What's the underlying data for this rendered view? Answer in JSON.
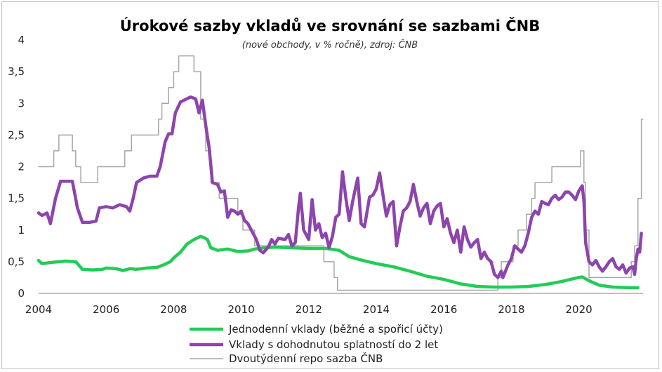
{
  "chart_data": {
    "type": "line",
    "title": "Úrokové sazby vkladů ve srovnání se sazbami ČNB",
    "subtitle": "(nové obchody, v % ročně), zdroj: ČNB",
    "xlim": [
      2004,
      2021.9
    ],
    "ylim": [
      0,
      4
    ],
    "x_ticks": [
      2004,
      2006,
      2008,
      2010,
      2012,
      2014,
      2016,
      2018,
      2020
    ],
    "y_ticks": [
      0,
      0.5,
      1,
      1.5,
      2,
      2.5,
      3,
      3.5,
      4
    ],
    "y_tick_labels": [
      "0",
      "0,5",
      "1",
      "1,5",
      "2",
      "2,5",
      "3",
      "3,5",
      "4"
    ],
    "grid": false,
    "legend_position": "bottom",
    "series": [
      {
        "name": "Jednodenní vklady (běžné a spořicí účty)",
        "color": "#22cc55",
        "step": false,
        "points": [
          [
            2004,
            0.52
          ],
          [
            2004.1,
            0.47
          ],
          [
            2004.4,
            0.49
          ],
          [
            2004.8,
            0.51
          ],
          [
            2005.1,
            0.5
          ],
          [
            2005.3,
            0.38
          ],
          [
            2005.6,
            0.37
          ],
          [
            2005.9,
            0.38
          ],
          [
            2006.0,
            0.4
          ],
          [
            2006.3,
            0.39
          ],
          [
            2006.5,
            0.36
          ],
          [
            2006.7,
            0.39
          ],
          [
            2006.9,
            0.38
          ],
          [
            2007.2,
            0.4
          ],
          [
            2007.5,
            0.41
          ],
          [
            2007.7,
            0.45
          ],
          [
            2007.9,
            0.5
          ],
          [
            2008.0,
            0.56
          ],
          [
            2008.2,
            0.65
          ],
          [
            2008.4,
            0.78
          ],
          [
            2008.6,
            0.85
          ],
          [
            2008.8,
            0.9
          ],
          [
            2008.9,
            0.88
          ],
          [
            2009.0,
            0.85
          ],
          [
            2009.1,
            0.72
          ],
          [
            2009.3,
            0.68
          ],
          [
            2009.6,
            0.7
          ],
          [
            2009.9,
            0.66
          ],
          [
            2010.2,
            0.67
          ],
          [
            2010.4,
            0.7
          ],
          [
            2010.7,
            0.72
          ],
          [
            2011.0,
            0.73
          ],
          [
            2011.5,
            0.72
          ],
          [
            2012.0,
            0.71
          ],
          [
            2012.5,
            0.71
          ],
          [
            2012.9,
            0.68
          ],
          [
            2013.2,
            0.58
          ],
          [
            2013.6,
            0.52
          ],
          [
            2014.0,
            0.47
          ],
          [
            2014.5,
            0.42
          ],
          [
            2015.0,
            0.35
          ],
          [
            2015.5,
            0.27
          ],
          [
            2016.0,
            0.22
          ],
          [
            2016.5,
            0.15
          ],
          [
            2017.0,
            0.11
          ],
          [
            2017.5,
            0.1
          ],
          [
            2018.0,
            0.1
          ],
          [
            2018.5,
            0.11
          ],
          [
            2019.0,
            0.14
          ],
          [
            2019.5,
            0.19
          ],
          [
            2019.9,
            0.24
          ],
          [
            2020.1,
            0.26
          ],
          [
            2020.3,
            0.2
          ],
          [
            2020.6,
            0.13
          ],
          [
            2021.0,
            0.1
          ],
          [
            2021.5,
            0.09
          ],
          [
            2021.75,
            0.09
          ]
        ]
      },
      {
        "name": "Vklady s dohodnutou splatností do 2 let",
        "color": "#8d44ad",
        "step": false,
        "points": [
          [
            2004,
            1.27
          ],
          [
            2004.1,
            1.23
          ],
          [
            2004.25,
            1.27
          ],
          [
            2004.35,
            1.1
          ],
          [
            2004.5,
            1.5
          ],
          [
            2004.65,
            1.77
          ],
          [
            2004.8,
            1.77
          ],
          [
            2005.0,
            1.77
          ],
          [
            2005.15,
            1.35
          ],
          [
            2005.3,
            1.12
          ],
          [
            2005.5,
            1.12
          ],
          [
            2005.7,
            1.14
          ],
          [
            2005.8,
            1.35
          ],
          [
            2006.0,
            1.37
          ],
          [
            2006.2,
            1.35
          ],
          [
            2006.4,
            1.4
          ],
          [
            2006.6,
            1.37
          ],
          [
            2006.7,
            1.3
          ],
          [
            2006.8,
            1.5
          ],
          [
            2006.9,
            1.75
          ],
          [
            2007.1,
            1.82
          ],
          [
            2007.3,
            1.85
          ],
          [
            2007.5,
            1.85
          ],
          [
            2007.6,
            2.0
          ],
          [
            2007.75,
            2.4
          ],
          [
            2007.85,
            2.52
          ],
          [
            2007.95,
            2.52
          ],
          [
            2008.05,
            2.85
          ],
          [
            2008.2,
            3.02
          ],
          [
            2008.35,
            3.06
          ],
          [
            2008.5,
            3.1
          ],
          [
            2008.65,
            3.07
          ],
          [
            2008.75,
            2.85
          ],
          [
            2008.85,
            3.05
          ],
          [
            2008.95,
            2.65
          ],
          [
            2009.05,
            2.3
          ],
          [
            2009.15,
            1.75
          ],
          [
            2009.3,
            1.72
          ],
          [
            2009.4,
            1.6
          ],
          [
            2009.5,
            1.62
          ],
          [
            2009.6,
            1.2
          ],
          [
            2009.7,
            1.32
          ],
          [
            2009.8,
            1.3
          ],
          [
            2009.9,
            1.25
          ],
          [
            2010.0,
            1.3
          ],
          [
            2010.1,
            1.15
          ],
          [
            2010.2,
            1.1
          ],
          [
            2010.3,
            1.0
          ],
          [
            2010.45,
            0.85
          ],
          [
            2010.55,
            0.68
          ],
          [
            2010.65,
            0.64
          ],
          [
            2010.8,
            0.73
          ],
          [
            2010.9,
            0.85
          ],
          [
            2011.0,
            0.78
          ],
          [
            2011.1,
            0.87
          ],
          [
            2011.3,
            0.85
          ],
          [
            2011.4,
            0.93
          ],
          [
            2011.5,
            0.75
          ],
          [
            2011.6,
            0.8
          ],
          [
            2011.7,
            1.37
          ],
          [
            2011.75,
            1.58
          ],
          [
            2011.85,
            1.0
          ],
          [
            2012.0,
            0.85
          ],
          [
            2012.1,
            1.48
          ],
          [
            2012.2,
            1.0
          ],
          [
            2012.3,
            1.1
          ],
          [
            2012.4,
            0.88
          ],
          [
            2012.5,
            0.95
          ],
          [
            2012.6,
            0.72
          ],
          [
            2012.7,
            0.9
          ],
          [
            2012.8,
            1.2
          ],
          [
            2012.9,
            1.25
          ],
          [
            2013.0,
            1.92
          ],
          [
            2013.1,
            1.5
          ],
          [
            2013.2,
            1.15
          ],
          [
            2013.3,
            1.45
          ],
          [
            2013.4,
            1.7
          ],
          [
            2013.45,
            1.82
          ],
          [
            2013.55,
            1.1
          ],
          [
            2013.65,
            1.05
          ],
          [
            2013.8,
            1.52
          ],
          [
            2013.9,
            1.55
          ],
          [
            2014.0,
            1.65
          ],
          [
            2014.1,
            1.9
          ],
          [
            2014.2,
            1.55
          ],
          [
            2014.3,
            1.22
          ],
          [
            2014.4,
            1.4
          ],
          [
            2014.5,
            1.45
          ],
          [
            2014.6,
            0.75
          ],
          [
            2014.7,
            1.05
          ],
          [
            2014.8,
            1.3
          ],
          [
            2014.9,
            1.35
          ],
          [
            2015.0,
            1.45
          ],
          [
            2015.1,
            1.72
          ],
          [
            2015.2,
            1.45
          ],
          [
            2015.3,
            1.22
          ],
          [
            2015.4,
            1.35
          ],
          [
            2015.5,
            1.42
          ],
          [
            2015.6,
            1.1
          ],
          [
            2015.7,
            1.3
          ],
          [
            2015.8,
            1.38
          ],
          [
            2015.9,
            1.42
          ],
          [
            2016.0,
            1.05
          ],
          [
            2016.1,
            1.18
          ],
          [
            2016.2,
            0.95
          ],
          [
            2016.3,
            0.8
          ],
          [
            2016.4,
            1.0
          ],
          [
            2016.5,
            0.65
          ],
          [
            2016.6,
            1.05
          ],
          [
            2016.7,
            0.85
          ],
          [
            2016.8,
            0.73
          ],
          [
            2016.9,
            0.8
          ],
          [
            2017.0,
            0.85
          ],
          [
            2017.1,
            0.55
          ],
          [
            2017.2,
            0.65
          ],
          [
            2017.3,
            0.55
          ],
          [
            2017.4,
            0.5
          ],
          [
            2017.5,
            0.3
          ],
          [
            2017.6,
            0.25
          ],
          [
            2017.7,
            0.35
          ],
          [
            2017.75,
            0.25
          ],
          [
            2017.9,
            0.45
          ],
          [
            2018.0,
            0.55
          ],
          [
            2018.1,
            0.75
          ],
          [
            2018.2,
            0.7
          ],
          [
            2018.3,
            0.65
          ],
          [
            2018.4,
            0.75
          ],
          [
            2018.5,
            0.95
          ],
          [
            2018.6,
            1.2
          ],
          [
            2018.7,
            1.3
          ],
          [
            2018.8,
            1.25
          ],
          [
            2018.9,
            1.45
          ],
          [
            2019.0,
            1.42
          ],
          [
            2019.1,
            1.4
          ],
          [
            2019.2,
            1.5
          ],
          [
            2019.3,
            1.55
          ],
          [
            2019.4,
            1.48
          ],
          [
            2019.5,
            1.52
          ],
          [
            2019.6,
            1.6
          ],
          [
            2019.7,
            1.6
          ],
          [
            2019.8,
            1.55
          ],
          [
            2019.9,
            1.48
          ],
          [
            2020.0,
            1.62
          ],
          [
            2020.1,
            1.7
          ],
          [
            2020.15,
            1.45
          ],
          [
            2020.2,
            0.8
          ],
          [
            2020.3,
            0.5
          ],
          [
            2020.4,
            0.45
          ],
          [
            2020.5,
            0.52
          ],
          [
            2020.6,
            0.42
          ],
          [
            2020.7,
            0.35
          ],
          [
            2020.8,
            0.42
          ],
          [
            2020.9,
            0.5
          ],
          [
            2021.0,
            0.55
          ],
          [
            2021.1,
            0.42
          ],
          [
            2021.2,
            0.38
          ],
          [
            2021.3,
            0.45
          ],
          [
            2021.4,
            0.32
          ],
          [
            2021.5,
            0.4
          ],
          [
            2021.6,
            0.42
          ],
          [
            2021.65,
            0.3
          ],
          [
            2021.7,
            0.55
          ],
          [
            2021.75,
            0.7
          ],
          [
            2021.8,
            0.65
          ],
          [
            2021.85,
            0.95
          ]
        ]
      },
      {
        "name": "Dvoutýdenní repo sazba ČNB",
        "color": "#a6a6a6",
        "step": true,
        "points": [
          [
            2004,
            2.0
          ],
          [
            2004.45,
            2.25
          ],
          [
            2004.6,
            2.5
          ],
          [
            2005.0,
            2.25
          ],
          [
            2005.1,
            2.0
          ],
          [
            2005.25,
            1.75
          ],
          [
            2005.75,
            2.0
          ],
          [
            2006.55,
            2.25
          ],
          [
            2006.75,
            2.5
          ],
          [
            2007.55,
            2.75
          ],
          [
            2007.65,
            3.0
          ],
          [
            2007.85,
            3.25
          ],
          [
            2008.0,
            3.5
          ],
          [
            2008.15,
            3.75
          ],
          [
            2008.6,
            3.5
          ],
          [
            2008.8,
            2.75
          ],
          [
            2008.95,
            2.25
          ],
          [
            2009.1,
            1.75
          ],
          [
            2009.35,
            1.5
          ],
          [
            2009.9,
            1.25
          ],
          [
            2010.05,
            1.0
          ],
          [
            2010.4,
            0.75
          ],
          [
            2012.45,
            0.5
          ],
          [
            2012.75,
            0.25
          ],
          [
            2012.85,
            0.05
          ],
          [
            2017.6,
            0.25
          ],
          [
            2017.7,
            0.5
          ],
          [
            2018.05,
            0.75
          ],
          [
            2018.2,
            1.0
          ],
          [
            2018.45,
            1.25
          ],
          [
            2018.6,
            1.5
          ],
          [
            2018.7,
            1.75
          ],
          [
            2019.2,
            2.0
          ],
          [
            2020.05,
            2.25
          ],
          [
            2020.15,
            1.75
          ],
          [
            2020.2,
            1.0
          ],
          [
            2020.3,
            0.25
          ],
          [
            2021.55,
            0.5
          ],
          [
            2021.65,
            0.75
          ],
          [
            2021.75,
            1.5
          ],
          [
            2021.85,
            2.75
          ],
          [
            2021.9,
            2.75
          ]
        ]
      }
    ]
  }
}
